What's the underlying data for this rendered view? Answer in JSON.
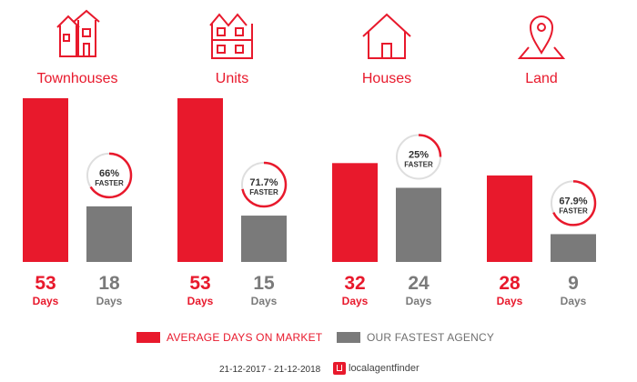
{
  "colors": {
    "market": "#e8192c",
    "agency": "#7a7a7a",
    "ring_track": "#dedede"
  },
  "chart_data": {
    "type": "bar",
    "categories": [
      "Townhouses",
      "Units",
      "Houses",
      "Land"
    ],
    "icons": [
      "townhouse-icon",
      "units-icon",
      "house-icon",
      "land-pin-icon"
    ],
    "series": [
      {
        "name": "AVERAGE DAYS ON MARKET",
        "values": [
          53,
          53,
          32,
          28
        ]
      },
      {
        "name": "OUR FASTEST AGENCY",
        "values": [
          18,
          15,
          24,
          9
        ]
      }
    ],
    "value_unit": "Days",
    "faster": {
      "labels": [
        "66%",
        "71.7%",
        "25%",
        "67.9%"
      ],
      "fractions": [
        0.66,
        0.717,
        0.25,
        0.679
      ],
      "caption": "FASTER"
    }
  },
  "legend": {
    "market_label": "AVERAGE DAYS ON MARKET",
    "agency_label": "OUR FASTEST AGENCY"
  },
  "footer": {
    "date_range": "21-12-2017 - 21-12-2018",
    "brand": "localagentfinder"
  }
}
